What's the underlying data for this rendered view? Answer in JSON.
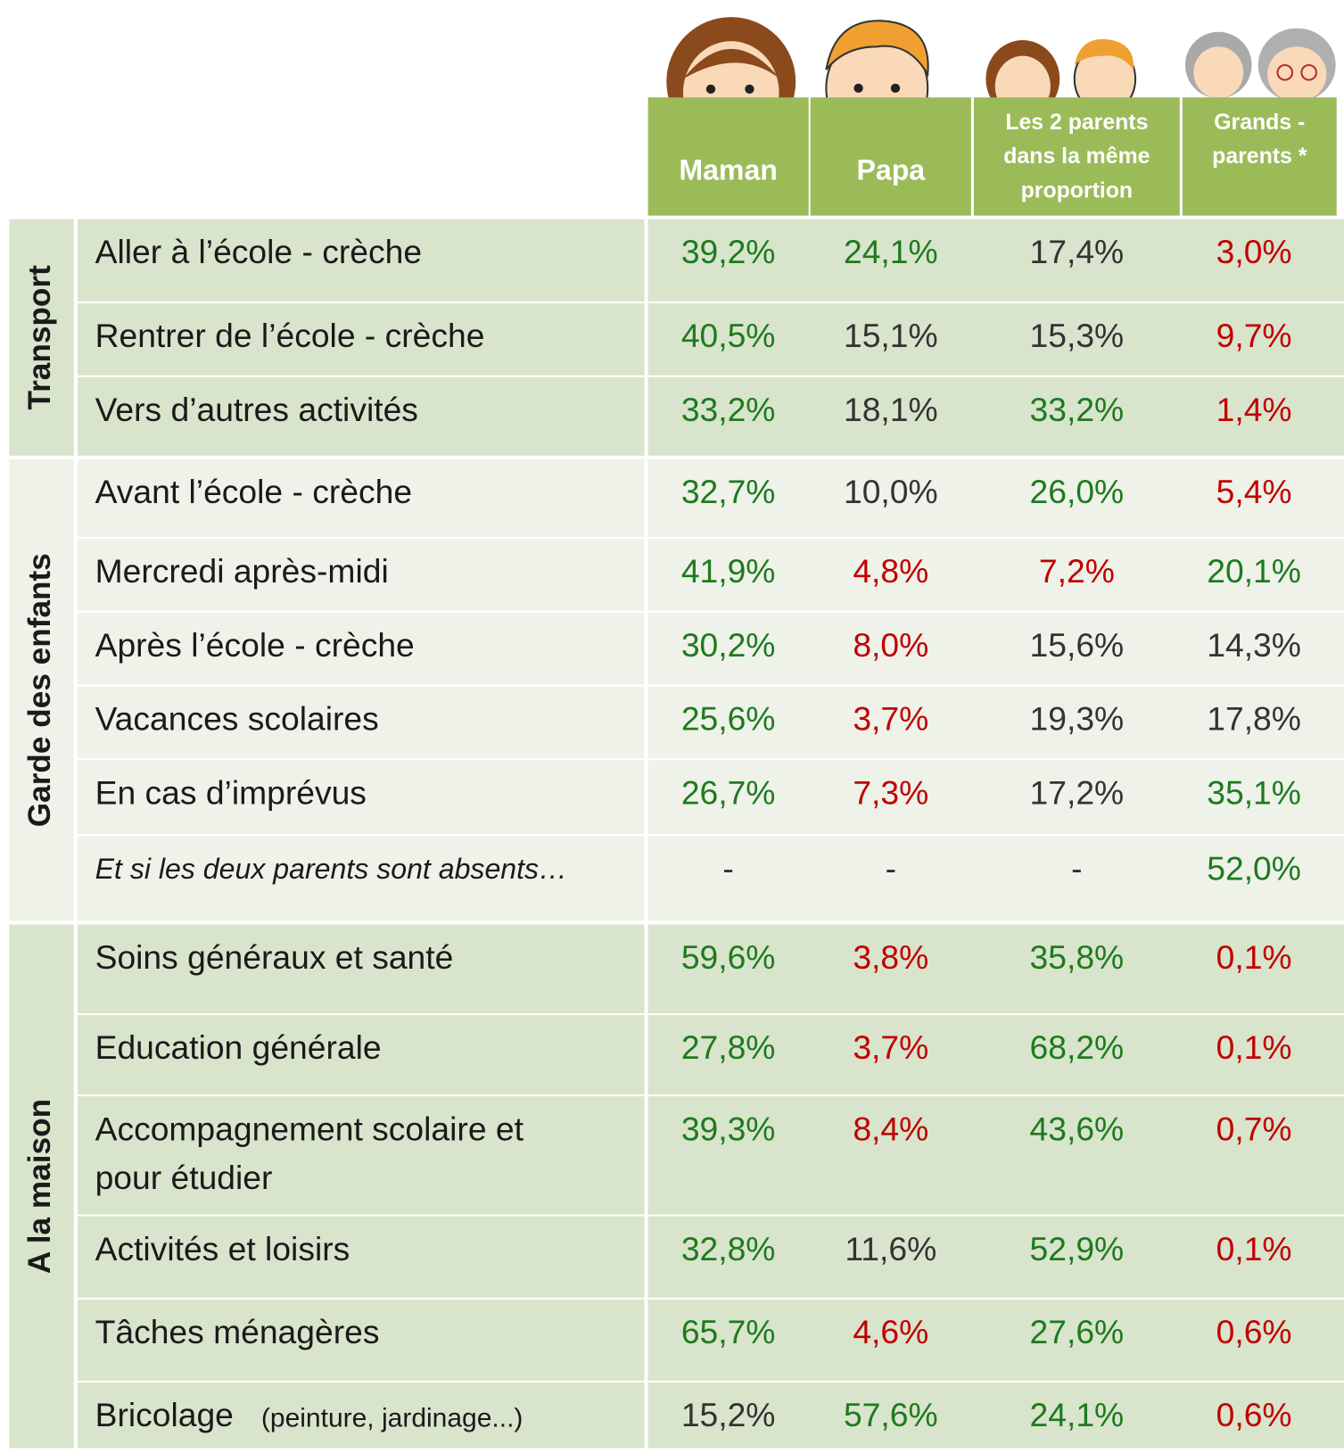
{
  "header": {
    "columns": [
      {
        "lines": [
          "Maman"
        ]
      },
      {
        "lines": [
          "Papa"
        ]
      },
      {
        "lines": [
          "Les 2 parents",
          "dans la même",
          "proportion"
        ]
      },
      {
        "lines": [
          "Grands -",
          "parents *"
        ]
      }
    ]
  },
  "groups": [
    {
      "label": "Transport",
      "background": "#d8e4cc",
      "rows": [
        {
          "label": [
            "Aller à l’école - crèche"
          ],
          "values": [
            {
              "text": "39,2%",
              "color": "#1e7a1e"
            },
            {
              "text": "24,1%",
              "color": "#1e7a1e"
            },
            {
              "text": "17,4%",
              "color": "#333333"
            },
            {
              "text": "3,0%",
              "color": "#c00000"
            }
          ]
        },
        {
          "label": [
            "Rentrer de l’école - crèche"
          ],
          "values": [
            {
              "text": "40,5%",
              "color": "#1e7a1e"
            },
            {
              "text": "15,1%",
              "color": "#333333"
            },
            {
              "text": "15,3%",
              "color": "#333333"
            },
            {
              "text": "9,7%",
              "color": "#c00000"
            }
          ]
        },
        {
          "label": [
            "Vers d’autres activités"
          ],
          "values": [
            {
              "text": "33,2%",
              "color": "#1e7a1e"
            },
            {
              "text": "18,1%",
              "color": "#333333"
            },
            {
              "text": "33,2%",
              "color": "#1e7a1e"
            },
            {
              "text": "1,4%",
              "color": "#c00000"
            }
          ]
        }
      ]
    },
    {
      "label": "Garde des enfants",
      "background": "#eef2e9",
      "rows": [
        {
          "label": [
            "Avant l’école - crèche"
          ],
          "values": [
            {
              "text": "32,7%",
              "color": "#1e7a1e"
            },
            {
              "text": "10,0%",
              "color": "#333333"
            },
            {
              "text": "26,0%",
              "color": "#1e7a1e"
            },
            {
              "text": "5,4%",
              "color": "#c00000"
            }
          ]
        },
        {
          "label": [
            "Mercredi après-midi"
          ],
          "values": [
            {
              "text": "41,9%",
              "color": "#1e7a1e"
            },
            {
              "text": "4,8%",
              "color": "#c00000"
            },
            {
              "text": "7,2%",
              "color": "#c00000"
            },
            {
              "text": "20,1%",
              "color": "#1e7a1e"
            }
          ]
        },
        {
          "label": [
            "Après l’école - crèche"
          ],
          "values": [
            {
              "text": "30,2%",
              "color": "#1e7a1e"
            },
            {
              "text": "8,0%",
              "color": "#c00000"
            },
            {
              "text": "15,6%",
              "color": "#333333"
            },
            {
              "text": "14,3%",
              "color": "#333333"
            }
          ]
        },
        {
          "label": [
            "Vacances scolaires"
          ],
          "values": [
            {
              "text": "25,6%",
              "color": "#1e7a1e"
            },
            {
              "text": "3,7%",
              "color": "#c00000"
            },
            {
              "text": "19,3%",
              "color": "#333333"
            },
            {
              "text": "17,8%",
              "color": "#333333"
            }
          ]
        },
        {
          "label": [
            "En cas d’imprévus"
          ],
          "values": [
            {
              "text": "26,7%",
              "color": "#1e7a1e"
            },
            {
              "text": "7,3%",
              "color": "#c00000"
            },
            {
              "text": "17,2%",
              "color": "#333333"
            },
            {
              "text": "35,1%",
              "color": "#1e7a1e"
            }
          ]
        },
        {
          "label": [
            "Et si les deux parents sont absents…"
          ],
          "italic": true,
          "values": [
            {
              "text": "-",
              "color": "#333333"
            },
            {
              "text": "-",
              "color": "#333333"
            },
            {
              "text": "-",
              "color": "#333333"
            },
            {
              "text": "52,0%",
              "color": "#1e7a1e"
            }
          ]
        }
      ]
    },
    {
      "label": "A la maison",
      "background": "#d8e4cc",
      "rows": [
        {
          "label": [
            "Soins généraux et santé"
          ],
          "values": [
            {
              "text": "59,6%",
              "color": "#1e7a1e"
            },
            {
              "text": "3,8%",
              "color": "#c00000"
            },
            {
              "text": "35,8%",
              "color": "#1e7a1e"
            },
            {
              "text": "0,1%",
              "color": "#c00000"
            }
          ]
        },
        {
          "label": [
            "Education générale"
          ],
          "values": [
            {
              "text": "27,8%",
              "color": "#1e7a1e"
            },
            {
              "text": "3,7%",
              "color": "#c00000"
            },
            {
              "text": "68,2%",
              "color": "#1e7a1e"
            },
            {
              "text": "0,1%",
              "color": "#c00000"
            }
          ]
        },
        {
          "label": [
            "Accompagnement scolaire et",
            "pour étudier"
          ],
          "values": [
            {
              "text": "39,3%",
              "color": "#1e7a1e"
            },
            {
              "text": "8,4%",
              "color": "#c00000"
            },
            {
              "text": "43,6%",
              "color": "#1e7a1e"
            },
            {
              "text": "0,7%",
              "color": "#c00000"
            }
          ]
        },
        {
          "label": [
            "Activités et loisirs"
          ],
          "values": [
            {
              "text": "32,8%",
              "color": "#1e7a1e"
            },
            {
              "text": "11,6%",
              "color": "#333333"
            },
            {
              "text": "52,9%",
              "color": "#1e7a1e"
            },
            {
              "text": "0,1%",
              "color": "#c00000"
            }
          ]
        },
        {
          "label": [
            "Tâches ménagères"
          ],
          "values": [
            {
              "text": "65,7%",
              "color": "#1e7a1e"
            },
            {
              "text": "4,6%",
              "color": "#c00000"
            },
            {
              "text": "27,6%",
              "color": "#1e7a1e"
            },
            {
              "text": "0,6%",
              "color": "#c00000"
            }
          ]
        },
        {
          "label": [
            "Bricolage"
          ],
          "note": "(peinture, jardinage...)",
          "values": [
            {
              "text": "15,2%",
              "color": "#333333"
            },
            {
              "text": "57,6%",
              "color": "#1e7a1e"
            },
            {
              "text": "24,1%",
              "color": "#1e7a1e"
            },
            {
              "text": "0,6%",
              "color": "#c00000"
            }
          ]
        }
      ]
    }
  ]
}
